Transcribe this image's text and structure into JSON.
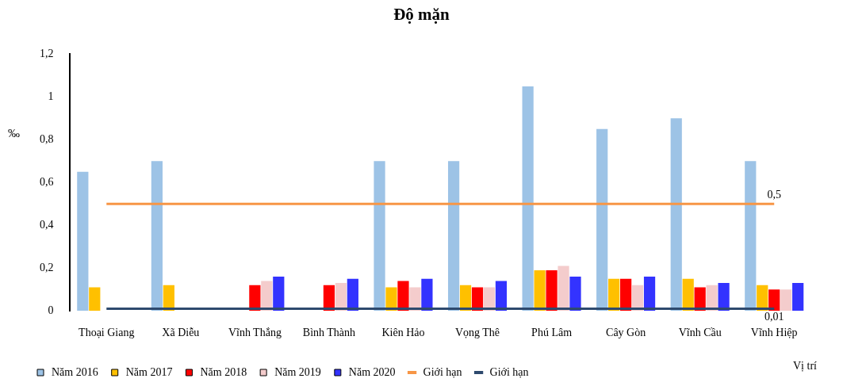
{
  "chart_data": {
    "type": "bar",
    "title": "Độ mặn",
    "xlabel": "Vị trí",
    "ylabel": "‰",
    "categories": [
      "Thoại Giang",
      "Xã Diễu",
      "Vĩnh Thắng",
      "Bình Thành",
      "Kiên Hảo",
      "Vọng Thê",
      "Phú Lâm",
      "Cây Gòn",
      "Vĩnh Cầu",
      "Vĩnh Hiệp"
    ],
    "series": [
      {
        "name": "Năm 2016",
        "color": "#9dc3e6",
        "values": [
          0.65,
          0.7,
          null,
          null,
          0.7,
          0.7,
          1.05,
          0.85,
          0.9,
          0.7
        ]
      },
      {
        "name": "Năm 2017",
        "color": "#ffc000",
        "values": [
          0.11,
          0.12,
          null,
          null,
          0.11,
          0.12,
          0.19,
          0.15,
          0.15,
          0.12
        ]
      },
      {
        "name": "Năm 2018",
        "color": "#ff0000",
        "values": [
          null,
          null,
          0.12,
          0.12,
          0.14,
          0.11,
          0.19,
          0.15,
          0.11,
          0.1
        ]
      },
      {
        "name": "Năm 2019",
        "color": "#f4cccc",
        "values": [
          null,
          null,
          0.14,
          0.13,
          0.11,
          0.11,
          0.21,
          0.12,
          0.12,
          0.1
        ]
      },
      {
        "name": "Năm 2020",
        "color": "#3333ff",
        "values": [
          null,
          null,
          0.16,
          0.15,
          0.15,
          0.14,
          0.16,
          0.16,
          0.13,
          0.13
        ]
      },
      {
        "name": "Giới hạn",
        "type": "line",
        "color": "#f79646",
        "values": [
          0.5,
          0.5,
          0.5,
          0.5,
          0.5,
          0.5,
          0.5,
          0.5,
          0.5,
          0.5
        ],
        "value_labels": [
          null,
          null,
          null,
          null,
          null,
          null,
          null,
          null,
          null,
          "0,5"
        ]
      },
      {
        "name": "Giới hạn",
        "type": "line",
        "color": "#2e4a6e",
        "values": [
          0.01,
          0.01,
          0.01,
          0.01,
          0.01,
          0.01,
          0.01,
          0.01,
          0.01,
          0.01
        ],
        "value_labels": [
          null,
          null,
          null,
          null,
          null,
          null,
          null,
          null,
          null,
          "0,01"
        ]
      }
    ],
    "ylim": [
      0,
      1.2
    ],
    "yticks": [
      0,
      {
        "value": 0.2,
        "label": "0,2"
      },
      {
        "value": 0.4,
        "label": "0,4"
      },
      {
        "value": 0.6,
        "label": "0,6"
      },
      {
        "value": 0.8,
        "label": "0,8"
      },
      1,
      {
        "value": 1.2,
        "label": "1,2"
      }
    ],
    "grid": false,
    "legend": "bottom",
    "marker": "none"
  }
}
